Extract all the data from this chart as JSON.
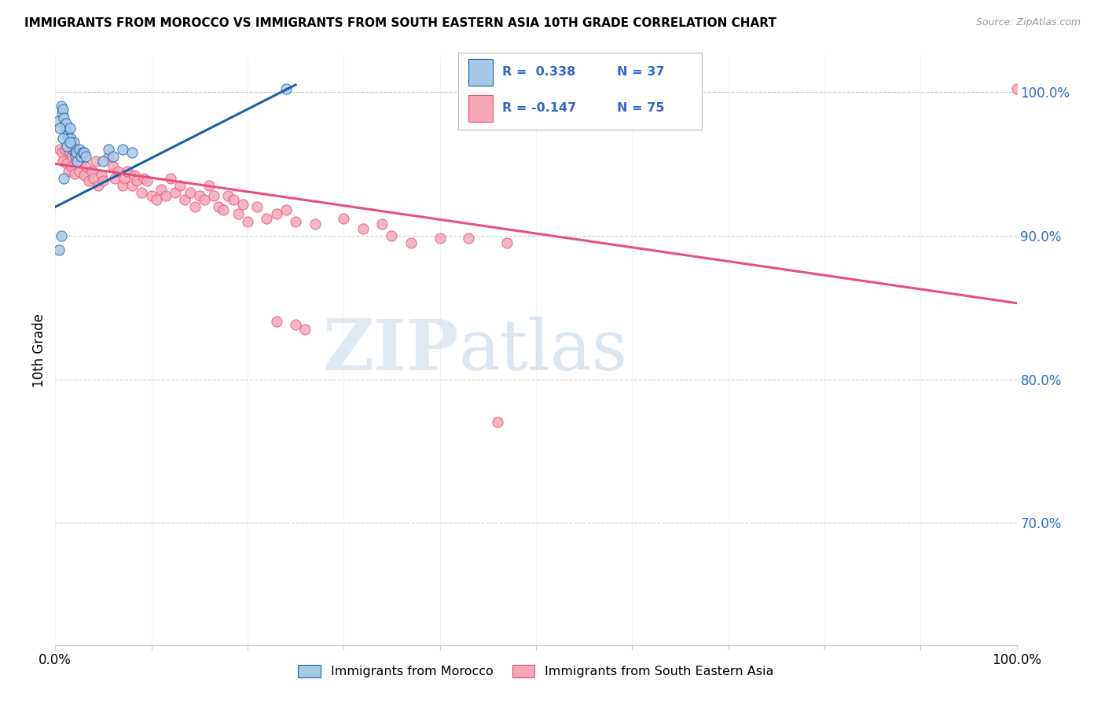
{
  "title": "IMMIGRANTS FROM MOROCCO VS IMMIGRANTS FROM SOUTH EASTERN ASIA 10TH GRADE CORRELATION CHART",
  "source": "Source: ZipAtlas.com",
  "ylabel": "10th Grade",
  "xlim": [
    0,
    1.0
  ],
  "ylim": [
    0.615,
    1.025
  ],
  "yticks": [
    0.7,
    0.8,
    0.9,
    1.0
  ],
  "ytick_labels": [
    "70.0%",
    "80.0%",
    "90.0%",
    "100.0%"
  ],
  "xtick_positions": [
    0.0,
    0.1,
    0.2,
    0.3,
    0.4,
    0.5,
    0.6,
    0.7,
    0.8,
    0.9,
    1.0
  ],
  "xtick_labels": [
    "0.0%",
    "",
    "",
    "",
    "",
    "",
    "",
    "",
    "",
    "",
    "100.0%"
  ],
  "watermark_zip": "ZIP",
  "watermark_atlas": "atlas",
  "legend_r1": "R =  0.338",
  "legend_n1": "N = 37",
  "legend_r2": "R = -0.147",
  "legend_n2": "N = 75",
  "legend_label1": "Immigrants from Morocco",
  "legend_label2": "Immigrants from South Eastern Asia",
  "color_morocco": "#a8c8e8",
  "color_sea": "#f4a8b8",
  "line_color_morocco": "#1a5fa8",
  "line_color_sea": "#e8507a",
  "background": "#ffffff",
  "grid_color": "#cccccc",
  "morocco_x": [
    0.003,
    0.006,
    0.007,
    0.008,
    0.009,
    0.01,
    0.011,
    0.012,
    0.013,
    0.014,
    0.015,
    0.016,
    0.017,
    0.018,
    0.019,
    0.02,
    0.021,
    0.022,
    0.023,
    0.025,
    0.027,
    0.028,
    0.03,
    0.032,
    0.005,
    0.008,
    0.012,
    0.015,
    0.05,
    0.055,
    0.06,
    0.07,
    0.08,
    0.006,
    0.004,
    0.009,
    0.24
  ],
  "morocco_y": [
    0.98,
    0.99,
    0.985,
    0.988,
    0.982,
    0.975,
    0.978,
    0.972,
    0.97,
    0.968,
    0.975,
    0.968,
    0.963,
    0.96,
    0.965,
    0.96,
    0.955,
    0.958,
    0.952,
    0.96,
    0.955,
    0.958,
    0.958,
    0.955,
    0.975,
    0.968,
    0.962,
    0.965,
    0.952,
    0.96,
    0.955,
    0.96,
    0.958,
    0.9,
    0.89,
    0.94,
    1.002
  ],
  "sea_x": [
    0.005,
    0.007,
    0.008,
    0.01,
    0.012,
    0.014,
    0.015,
    0.017,
    0.018,
    0.02,
    0.022,
    0.025,
    0.027,
    0.03,
    0.032,
    0.035,
    0.038,
    0.04,
    0.042,
    0.045,
    0.048,
    0.05,
    0.055,
    0.06,
    0.062,
    0.065,
    0.07,
    0.072,
    0.075,
    0.08,
    0.082,
    0.085,
    0.09,
    0.092,
    0.095,
    0.1,
    0.105,
    0.11,
    0.115,
    0.12,
    0.125,
    0.13,
    0.135,
    0.14,
    0.145,
    0.15,
    0.155,
    0.16,
    0.165,
    0.17,
    0.175,
    0.18,
    0.185,
    0.19,
    0.195,
    0.2,
    0.21,
    0.22,
    0.23,
    0.24,
    0.25,
    0.27,
    0.3,
    0.32,
    0.34,
    0.35,
    0.37,
    0.4,
    0.43,
    0.47,
    0.23,
    0.25,
    0.26,
    0.46,
    1.0
  ],
  "sea_y": [
    0.96,
    0.958,
    0.952,
    0.96,
    0.95,
    0.945,
    0.958,
    0.948,
    0.955,
    0.943,
    0.958,
    0.945,
    0.952,
    0.942,
    0.948,
    0.938,
    0.945,
    0.94,
    0.952,
    0.935,
    0.942,
    0.938,
    0.955,
    0.948,
    0.94,
    0.945,
    0.935,
    0.94,
    0.945,
    0.935,
    0.942,
    0.938,
    0.93,
    0.94,
    0.938,
    0.928,
    0.925,
    0.932,
    0.928,
    0.94,
    0.93,
    0.935,
    0.925,
    0.93,
    0.92,
    0.928,
    0.925,
    0.935,
    0.928,
    0.92,
    0.918,
    0.928,
    0.925,
    0.915,
    0.922,
    0.91,
    0.92,
    0.912,
    0.915,
    0.918,
    0.91,
    0.908,
    0.912,
    0.905,
    0.908,
    0.9,
    0.895,
    0.898,
    0.898,
    0.895,
    0.84,
    0.838,
    0.835,
    0.77,
    1.002
  ],
  "morocco_line_x": [
    0.0,
    0.25
  ],
  "morocco_line_y_start": 0.92,
  "morocco_line_y_end": 1.005,
  "sea_line_x": [
    0.0,
    1.0
  ],
  "sea_line_y_start": 0.95,
  "sea_line_y_end": 0.853
}
